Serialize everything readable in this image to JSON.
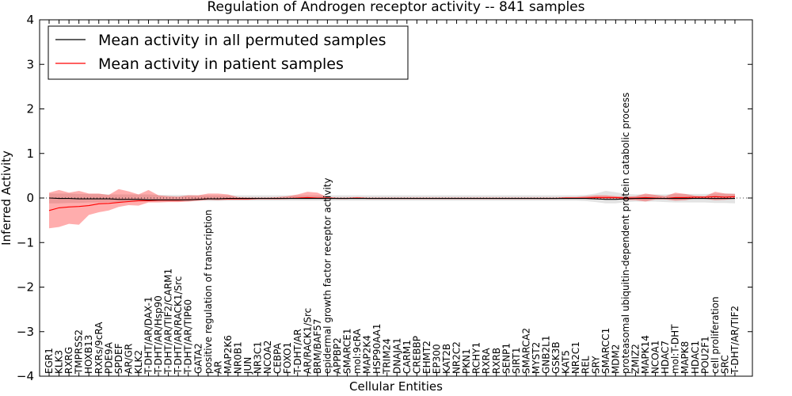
{
  "chart_data": {
    "type": "line",
    "title": "Regulation of Androgen receptor activity -- 841 samples",
    "xlabel": "Cellular Entities",
    "ylabel": "Inferred Activity",
    "ylim": [
      -4,
      4
    ],
    "yticks": [
      4,
      3,
      2,
      1,
      0,
      -1,
      -2,
      -3,
      -4
    ],
    "ytick_labels": [
      "4",
      "3",
      "2",
      "1",
      "0",
      "−1",
      "−2",
      "−3",
      "−4"
    ],
    "grid": false,
    "legend_position": "top-left",
    "categories": [
      "EGR1",
      "KLK3",
      "RXRG",
      "TMPRSS2",
      "HOXB13",
      "RXRs/9cRA",
      "PDE9A",
      "SPDEF",
      "AR/GR",
      "KLK2",
      "T-DHT/AR/DAX-1",
      "T-DHT/AR/Hsp90",
      "T-DHT/AR/TIF2/CARM1",
      "T-DHT/AR/RACK1/Src",
      "T-DHT/AR/TIP60",
      "GATA2",
      "positive regulation of transcription",
      "AR",
      "MAP2K6",
      "NR0B1",
      "JUN",
      "NR3C1",
      "NCOA2",
      "CEBPA",
      "FOXO1",
      "T-DHT/AR",
      "AR/RACK1/Src",
      "BRM/BAF57",
      "epidermal growth factor receptor activity",
      "APPBP2",
      "SMARCE1",
      "mol:9cRA",
      "MAP2K4",
      "HSP90AA1",
      "TRIM24",
      "DNAJA1",
      "CARM1",
      "CREBBP",
      "EHMT2",
      "EP300",
      "KAT2B",
      "NR2C2",
      "PKN1",
      "RCHY1",
      "RXRA",
      "RXRB",
      "SENP1",
      "SIRT1",
      "SMARCA2",
      "MYST2",
      "GNB2L1",
      "GSK3B",
      "KAT5",
      "NR2C1",
      "REL",
      "SRY",
      "SMARCC1",
      "MDM2",
      "proteasomal ubiquitin-dependent protein catabolic process",
      "ZMIZ2",
      "MAPK14",
      "NCOA1",
      "HDAC7",
      "mol:T-DHT",
      "MAPK8",
      "HDAC1",
      "POU2F1",
      "cell proliferation",
      "SRC",
      "T-DHT/AR/TIF2"
    ],
    "series": [
      {
        "name": "Mean activity in all permuted samples",
        "color": "#000000",
        "values": [
          0.0,
          -0.01,
          -0.01,
          -0.02,
          -0.02,
          -0.02,
          -0.02,
          -0.03,
          -0.03,
          -0.03,
          -0.04,
          -0.04,
          -0.04,
          -0.04,
          -0.04,
          -0.03,
          -0.02,
          -0.02,
          -0.01,
          -0.01,
          -0.01,
          -0.01,
          -0.01,
          -0.01,
          -0.01,
          -0.01,
          -0.01,
          -0.01,
          -0.01,
          -0.01,
          -0.01,
          -0.01,
          -0.01,
          -0.01,
          -0.01,
          -0.01,
          -0.01,
          -0.01,
          -0.01,
          -0.01,
          -0.01,
          -0.01,
          -0.01,
          -0.01,
          -0.01,
          -0.01,
          -0.01,
          -0.01,
          -0.01,
          -0.01,
          -0.01,
          -0.01,
          -0.01,
          -0.01,
          -0.01,
          -0.02,
          -0.03,
          -0.03,
          -0.02,
          -0.01,
          -0.01,
          -0.01,
          -0.01,
          -0.01,
          -0.01,
          -0.01,
          -0.01,
          -0.01,
          -0.01,
          -0.01
        ],
        "band_low": [
          -0.12,
          -0.12,
          -0.11,
          -0.11,
          -0.1,
          -0.1,
          -0.09,
          -0.09,
          -0.09,
          -0.08,
          -0.08,
          -0.08,
          -0.08,
          -0.08,
          -0.08,
          -0.07,
          -0.07,
          -0.07,
          -0.06,
          -0.06,
          -0.06,
          -0.06,
          -0.06,
          -0.06,
          -0.06,
          -0.06,
          -0.06,
          -0.06,
          -0.06,
          -0.06,
          -0.06,
          -0.06,
          -0.06,
          -0.06,
          -0.06,
          -0.06,
          -0.06,
          -0.06,
          -0.06,
          -0.06,
          -0.06,
          -0.06,
          -0.06,
          -0.06,
          -0.06,
          -0.06,
          -0.06,
          -0.06,
          -0.06,
          -0.06,
          -0.06,
          -0.06,
          -0.06,
          -0.06,
          -0.07,
          -0.09,
          -0.12,
          -0.12,
          -0.09,
          -0.08,
          -0.08,
          -0.08,
          -0.09,
          -0.1,
          -0.1,
          -0.1,
          -0.1,
          -0.11,
          -0.11,
          -0.12
        ],
        "band_high": [
          0.1,
          0.1,
          0.1,
          0.09,
          0.09,
          0.09,
          0.08,
          0.08,
          0.08,
          0.08,
          0.08,
          0.07,
          0.07,
          0.07,
          0.07,
          0.06,
          0.06,
          0.06,
          0.06,
          0.06,
          0.06,
          0.06,
          0.06,
          0.06,
          0.06,
          0.06,
          0.06,
          0.06,
          0.06,
          0.06,
          0.06,
          0.06,
          0.06,
          0.06,
          0.06,
          0.06,
          0.06,
          0.06,
          0.06,
          0.06,
          0.06,
          0.06,
          0.06,
          0.06,
          0.06,
          0.06,
          0.06,
          0.06,
          0.06,
          0.06,
          0.06,
          0.06,
          0.06,
          0.06,
          0.07,
          0.1,
          0.16,
          0.13,
          0.09,
          0.08,
          0.08,
          0.08,
          0.08,
          0.09,
          0.09,
          0.09,
          0.09,
          0.1,
          0.1,
          0.1
        ]
      },
      {
        "name": "Mean activity in patient samples",
        "color": "#ff0000",
        "values": [
          -0.28,
          -0.22,
          -0.2,
          -0.19,
          -0.17,
          -0.13,
          -0.12,
          -0.1,
          -0.08,
          -0.06,
          -0.06,
          -0.05,
          -0.05,
          -0.05,
          -0.04,
          -0.03,
          -0.02,
          -0.02,
          -0.02,
          -0.02,
          -0.02,
          -0.01,
          -0.01,
          -0.01,
          -0.01,
          0.0,
          0.01,
          0.0,
          0.0,
          -0.01,
          -0.01,
          0.0,
          -0.01,
          -0.01,
          -0.01,
          -0.01,
          -0.01,
          -0.01,
          -0.01,
          -0.01,
          -0.01,
          -0.01,
          -0.01,
          -0.01,
          -0.01,
          -0.01,
          -0.01,
          -0.01,
          -0.01,
          -0.01,
          -0.01,
          -0.01,
          0.0,
          0.0,
          0.0,
          0.01,
          0.01,
          0.01,
          0.0,
          0.0,
          0.01,
          0.0,
          -0.01,
          0.01,
          0.01,
          0.02,
          0.02,
          0.03,
          0.02,
          0.03
        ],
        "band_low": [
          -0.68,
          -0.65,
          -0.58,
          -0.6,
          -0.38,
          -0.32,
          -0.28,
          -0.2,
          -0.16,
          -0.17,
          -0.1,
          -0.1,
          -0.09,
          -0.09,
          -0.08,
          -0.06,
          -0.04,
          -0.05,
          -0.04,
          -0.04,
          -0.04,
          -0.03,
          -0.03,
          -0.03,
          -0.02,
          -0.02,
          -0.01,
          -0.02,
          -0.02,
          -0.02,
          -0.02,
          -0.01,
          -0.02,
          -0.02,
          -0.02,
          -0.02,
          -0.02,
          -0.02,
          -0.02,
          -0.02,
          -0.02,
          -0.02,
          -0.02,
          -0.02,
          -0.02,
          -0.02,
          -0.02,
          -0.02,
          -0.02,
          -0.02,
          -0.02,
          -0.02,
          -0.02,
          -0.02,
          -0.02,
          -0.02,
          -0.02,
          -0.02,
          -0.04,
          -0.05,
          -0.08,
          -0.03,
          -0.03,
          -0.06,
          -0.05,
          -0.01,
          -0.02,
          -0.05,
          -0.04,
          -0.02
        ],
        "band_high": [
          0.12,
          0.18,
          0.12,
          0.16,
          0.1,
          0.1,
          0.07,
          0.2,
          0.15,
          0.08,
          0.18,
          0.06,
          0.04,
          0.03,
          0.06,
          0.06,
          0.1,
          0.1,
          0.08,
          0.02,
          0.01,
          0.01,
          0.01,
          0.02,
          0.04,
          0.08,
          0.14,
          0.12,
          0.02,
          0.01,
          0.01,
          0.02,
          0.01,
          0.01,
          0.01,
          0.01,
          0.01,
          0.01,
          0.01,
          0.01,
          0.01,
          0.01,
          0.01,
          0.01,
          0.01,
          0.01,
          0.01,
          0.01,
          0.01,
          0.01,
          0.01,
          0.01,
          0.02,
          0.02,
          0.04,
          0.06,
          0.06,
          0.04,
          0.03,
          0.04,
          0.1,
          0.07,
          0.04,
          0.12,
          0.09,
          0.05,
          0.04,
          0.14,
          0.1,
          0.09
        ]
      }
    ],
    "legend": [
      {
        "label": "Mean activity in all permuted samples",
        "color": "#000000"
      },
      {
        "label": "Mean activity in patient samples",
        "color": "#ff0000"
      }
    ]
  }
}
